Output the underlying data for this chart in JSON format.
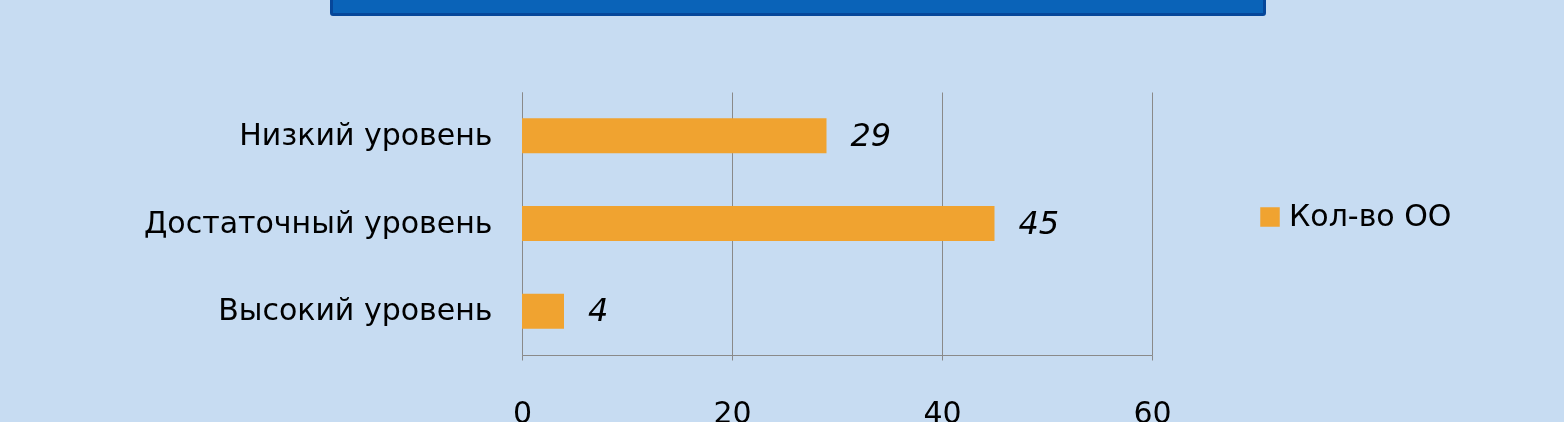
{
  "chart_data": {
    "type": "bar",
    "orientation": "horizontal",
    "categories": [
      "Низкий уровень",
      "Достаточный уровень",
      "Высокий уровень"
    ],
    "series": [
      {
        "name": "Кол-во ОО",
        "color": "#f0a330",
        "values": [
          29,
          45,
          4
        ]
      }
    ],
    "xlim": [
      0,
      60
    ],
    "xticks": [
      0,
      20,
      40,
      60
    ],
    "grid": "x",
    "legend": "right",
    "data_labels": true
  }
}
